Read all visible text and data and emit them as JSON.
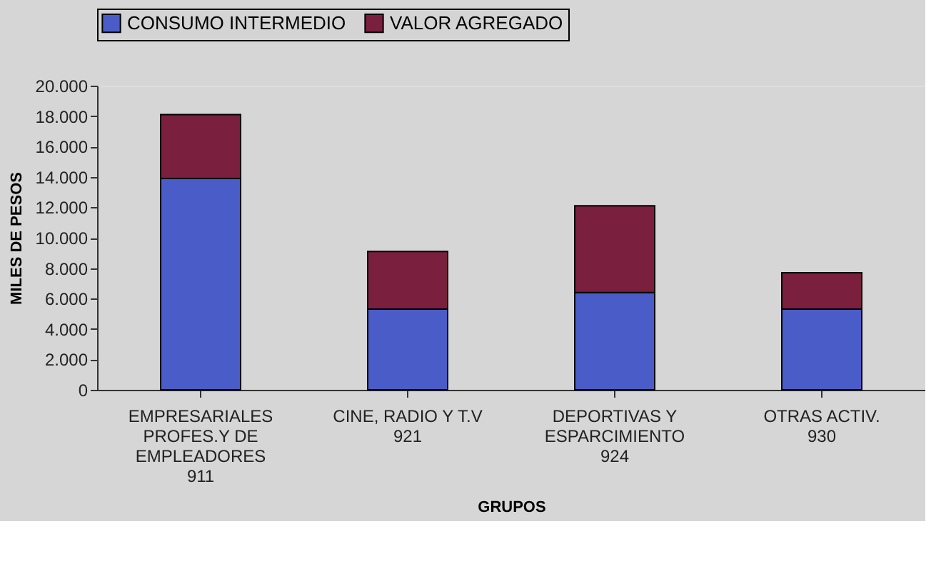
{
  "chart_data": {
    "type": "bar",
    "stacked": true,
    "xlabel": "GRUPOS",
    "ylabel": "MILES DE PESOS",
    "categories": [
      "EMPRESARIALES\nPROFES.Y DE\nEMPLEADORES\n911",
      "CINE, RADIO Y T.V\n921",
      "DEPORTIVAS Y\nESPARCIMIENTO\n924",
      "OTRAS ACTIV.\n930"
    ],
    "series": [
      {
        "name": "CONSUMO INTERMEDIO",
        "color": "#4a5cc8",
        "values": [
          13900,
          5300,
          6400,
          5300
        ]
      },
      {
        "name": "VALOR AGREGADO",
        "color": "#7a1f3e",
        "values": [
          4200,
          3800,
          5700,
          2400
        ]
      }
    ],
    "ylim": [
      0,
      20000
    ],
    "yticks": [
      {
        "value": 0,
        "label": "0"
      },
      {
        "value": 2000,
        "label": "2.000"
      },
      {
        "value": 4000,
        "label": "4.000"
      },
      {
        "value": 6000,
        "label": "6.000"
      },
      {
        "value": 8000,
        "label": "8.000"
      },
      {
        "value": 10000,
        "label": "10.000"
      },
      {
        "value": 12000,
        "label": "12.000"
      },
      {
        "value": 14000,
        "label": "14.000"
      },
      {
        "value": 16000,
        "label": "16.000"
      },
      {
        "value": 18000,
        "label": "18.000"
      },
      {
        "value": 20000,
        "label": "20.000"
      }
    ],
    "grid": false,
    "legend": "top"
  }
}
